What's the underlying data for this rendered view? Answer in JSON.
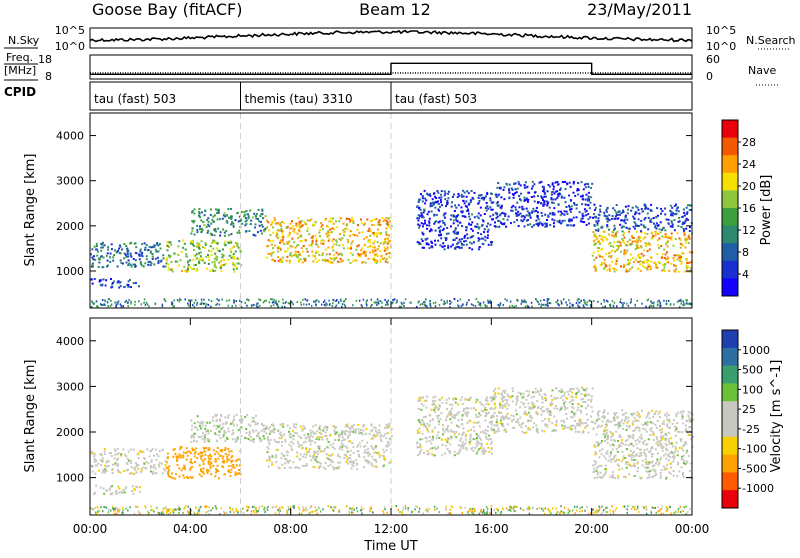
{
  "header": {
    "station": "Goose Bay (fitACF)",
    "beam": "Beam 12",
    "date": "23/May/2011"
  },
  "noise_panel": {
    "left_label": "N.Sky",
    "right_label": "N.Search",
    "left_ticks": [
      "10^5",
      "10^0"
    ],
    "right_ticks": [
      "10^5",
      "10^0"
    ]
  },
  "freq_panel": {
    "left_label_line1": "Freq.",
    "left_label_line2": "[MHz]",
    "right_label": "Nave",
    "left_ticks": [
      "18",
      "8"
    ],
    "right_ticks": [
      "60",
      "0"
    ]
  },
  "cpid_panel": {
    "label": "CPID",
    "segments": [
      {
        "label": "tau (fast) 503",
        "start_hour": 0
      },
      {
        "label": "themis (tau) 3310",
        "start_hour": 6
      },
      {
        "label": "tau (fast) 503",
        "start_hour": 12
      }
    ]
  },
  "power_panel": {
    "ylabel": "Slant Range [km]",
    "colorbar_label": "Power [dB]",
    "colorbar_ticks": [
      "28",
      "24",
      "20",
      "16",
      "12",
      "8",
      "4"
    ],
    "colorbar_colors": [
      "#e8000b",
      "#f35a00",
      "#ff9f00",
      "#f6e000",
      "#8dc63f",
      "#3b9f3b",
      "#2d8a6f",
      "#1f5fa8",
      "#1a2fd0",
      "#1400ff"
    ]
  },
  "velocity_panel": {
    "ylabel": "Slant Range [km]",
    "colorbar_label": "Velocity [m s^-1]",
    "colorbar_ticks": [
      "1000",
      "500",
      "100",
      "25",
      "-25",
      "-100",
      "-500",
      "-1000"
    ],
    "colorbar_colors": [
      "#1f3fb0",
      "#2d6fa0",
      "#3a9f6f",
      "#6bc23a",
      "#c8c8c0",
      "#c8c8c0",
      "#f7d000",
      "#ffa200",
      "#ff5a00",
      "#e8000b"
    ]
  },
  "x_axis": {
    "label": "Time UT",
    "ticks": [
      "00:00",
      "04:00",
      "08:00",
      "12:00",
      "16:00",
      "20:00",
      "00:00"
    ]
  },
  "chart_data": {
    "type": "heatmap",
    "title": "Goose Bay (fitACF) Beam 12 23/May/2011",
    "xlabel": "Time UT",
    "ylabel": "Slant Range [km]",
    "x_range_hours": [
      0,
      24
    ],
    "y_range_km": [
      180,
      4500
    ],
    "y_ticks_km": [
      1000,
      2000,
      3000,
      4000
    ],
    "freq_mhz": {
      "start_hour": 0,
      "end_hour": 24,
      "value": 10
    },
    "nave": [
      {
        "start_hour": 0,
        "end_hour": 12,
        "value": 10
      },
      {
        "start_hour": 12,
        "end_hour": 20,
        "value": 40
      },
      {
        "start_hour": 20,
        "end_hour": 24,
        "value": 10
      }
    ],
    "cpid_boundaries_hour": [
      6,
      12
    ],
    "echo_regions": [
      {
        "start_hour": 0.0,
        "end_hour": 3.0,
        "range_km": [
          1100,
          1650
        ],
        "power_db": 10,
        "velocity": 0
      },
      {
        "start_hour": 0.0,
        "end_hour": 2.0,
        "range_km": [
          650,
          850
        ],
        "power_db": 8,
        "velocity": 0
      },
      {
        "start_hour": 3.0,
        "end_hour": 6.0,
        "range_km": [
          1000,
          1700
        ],
        "power_db": 18,
        "velocity": -200
      },
      {
        "start_hour": 4.0,
        "end_hour": 7.0,
        "range_km": [
          1800,
          2400
        ],
        "power_db": 12,
        "velocity": 10
      },
      {
        "start_hour": 7.0,
        "end_hour": 12.0,
        "range_km": [
          1200,
          2200
        ],
        "power_db": 22,
        "velocity": 0
      },
      {
        "start_hour": 13.0,
        "end_hour": 16.0,
        "range_km": [
          1500,
          2800
        ],
        "power_db": 6,
        "velocity": 0
      },
      {
        "start_hour": 16.0,
        "end_hour": 20.0,
        "range_km": [
          2000,
          3000
        ],
        "power_db": 6,
        "velocity": 0
      },
      {
        "start_hour": 20.0,
        "end_hour": 24.0,
        "range_km": [
          1000,
          1900
        ],
        "power_db": 22,
        "velocity": 0
      },
      {
        "start_hour": 20.0,
        "end_hour": 24.0,
        "range_km": [
          1900,
          2500
        ],
        "power_db": 8,
        "velocity": 0
      }
    ]
  }
}
